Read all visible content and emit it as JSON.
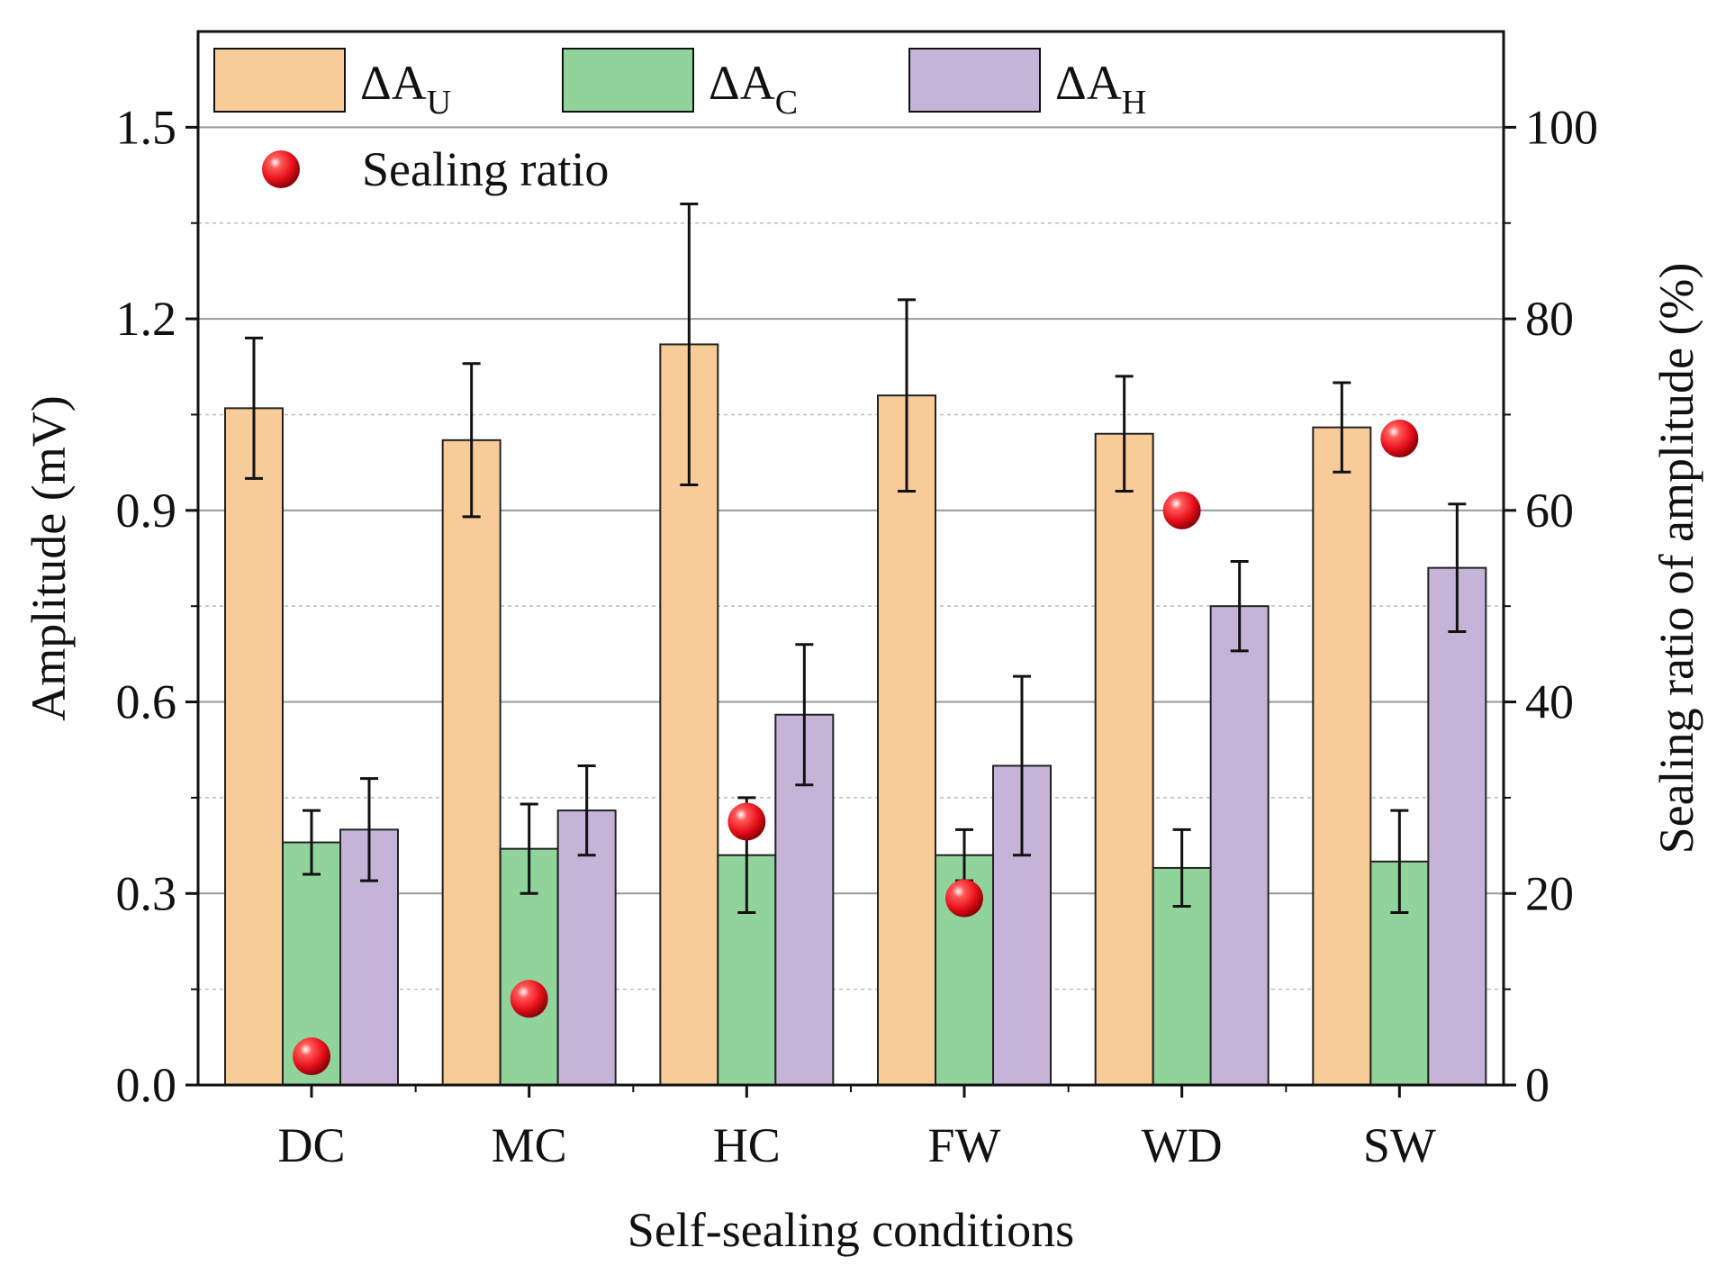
{
  "chart_data": {
    "type": "bar",
    "xlabel": "Self-sealing conditions",
    "ylabel": "Amplitude (mV)",
    "y2label": "Sealing ratio of amplitude (%)",
    "ylim": [
      0,
      1.65
    ],
    "y2lim": [
      0,
      110
    ],
    "yticks": [
      "0.0",
      "0.3",
      "0.6",
      "0.9",
      "1.2",
      "1.5"
    ],
    "yticks_values": [
      0,
      0.3,
      0.6,
      0.9,
      1.2,
      1.5
    ],
    "y2ticks": [
      "0",
      "20",
      "40",
      "60",
      "80",
      "100"
    ],
    "y2ticks_values": [
      0,
      20,
      40,
      60,
      80,
      100
    ],
    "grid": true,
    "legend_position": "top",
    "categories": [
      "DC",
      "MC",
      "HC",
      "FW",
      "WD",
      "SW"
    ],
    "series": [
      {
        "name": "ΔA",
        "subscript": "U",
        "color": "#f8cc98",
        "values": [
          1.06,
          1.01,
          1.16,
          1.08,
          1.02,
          1.03
        ],
        "errors": [
          0.11,
          0.12,
          0.22,
          0.15,
          0.09,
          0.07
        ]
      },
      {
        "name": "ΔA",
        "subscript": "C",
        "color": "#90d49c",
        "values": [
          0.38,
          0.37,
          0.36,
          0.36,
          0.34,
          0.35
        ],
        "errors": [
          0.05,
          0.07,
          0.09,
          0.04,
          0.06,
          0.08
        ]
      },
      {
        "name": "ΔA",
        "subscript": "H",
        "color": "#c6b4d8",
        "values": [
          0.4,
          0.43,
          0.58,
          0.5,
          0.75,
          0.81
        ],
        "errors": [
          0.08,
          0.07,
          0.11,
          0.14,
          0.07,
          0.1
        ]
      }
    ],
    "scatter": {
      "name": "Sealing ratio",
      "axis": "right",
      "color": "#e8101a",
      "values": [
        3,
        9,
        27.5,
        19.5,
        60,
        67.5
      ]
    }
  }
}
